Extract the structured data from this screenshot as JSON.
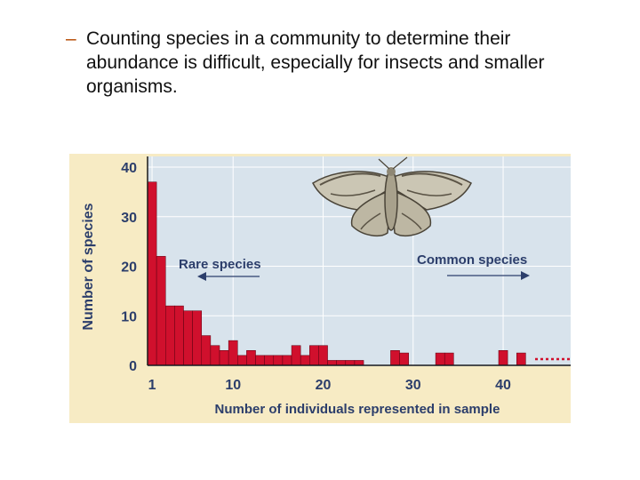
{
  "bullet": {
    "dash": "–",
    "text": "Counting species in a community to determine their abundance is difficult, especially for insects and smaller organisms."
  },
  "colors": {
    "panel": "#f7ebc4",
    "plot_bg": "#d8e3ec",
    "bar": "#d0102d",
    "bar_stroke": "#5a0010",
    "grid": "#ffffff",
    "text": "#2c3e6b"
  },
  "chart_data": {
    "type": "bar",
    "xlabel": "Number of individuals represented in sample",
    "ylabel": "Number of species",
    "xlim": [
      0.5,
      47.5
    ],
    "ylim": [
      0,
      40
    ],
    "x_ticks": [
      "1",
      "10",
      "20",
      "30",
      "40"
    ],
    "y_ticks": [
      "0",
      "10",
      "20",
      "30",
      "40"
    ],
    "grid": true,
    "annotations": {
      "rare": "Rare species",
      "common": "Common species"
    },
    "x": [
      1,
      2,
      3,
      4,
      5,
      6,
      7,
      8,
      9,
      10,
      11,
      12,
      13,
      14,
      15,
      16,
      17,
      18,
      19,
      20,
      21,
      22,
      23,
      24,
      25,
      26,
      27,
      28,
      29,
      30,
      31,
      32,
      33,
      34,
      35,
      36,
      37,
      38,
      39,
      40,
      41,
      42
    ],
    "values": [
      37,
      22,
      12,
      12,
      11,
      11,
      6,
      4,
      3,
      5,
      2,
      3,
      2,
      2,
      2,
      2,
      4,
      2,
      4,
      4,
      1,
      1,
      1,
      1,
      0,
      0,
      0,
      3,
      2.5,
      0,
      0,
      0,
      2.5,
      2.5,
      0,
      0,
      0,
      0,
      0,
      3,
      0,
      2.5
    ],
    "tail_marker": "dotted line continuing past x = 42"
  }
}
